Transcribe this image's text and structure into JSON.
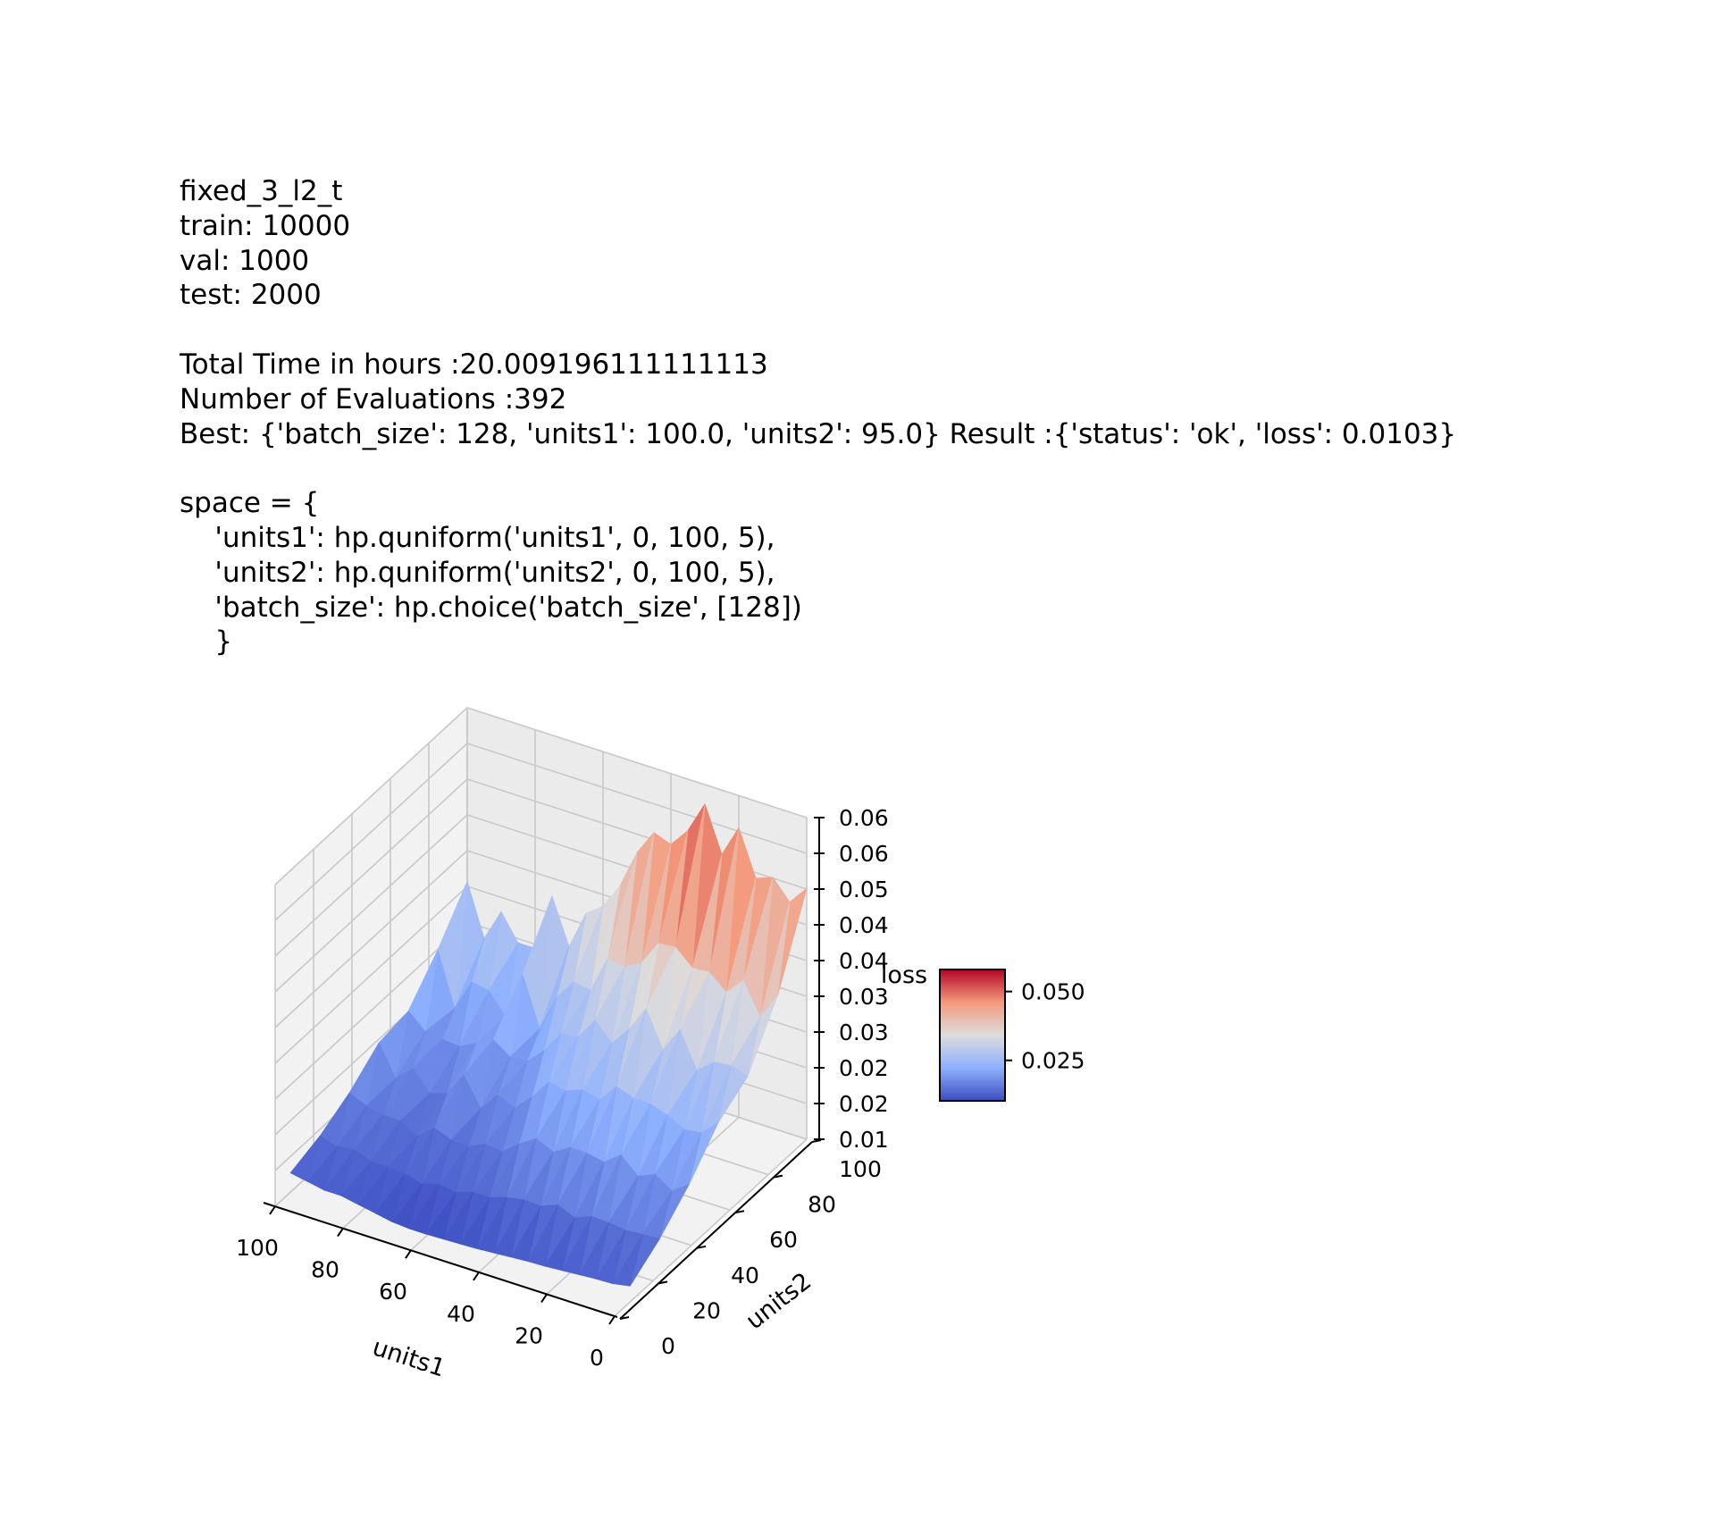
{
  "header": {
    "lines": [
      "fixed_3_l2_t",
      "train: 10000",
      "val: 1000",
      "test: 2000",
      "",
      "Total Time in hours :20.009196111111113",
      "Number of Evaluations :392",
      "Best: {'batch_size': 128, 'units1': 100.0, 'units2': 95.0} Result :{'status': 'ok', 'loss': 0.0103}",
      "",
      "space = {",
      "    'units1': hp.quniform('units1', 0, 100, 5),",
      "    'units2': hp.quniform('units2', 0, 100, 5),",
      "    'batch_size': hp.choice('batch_size', [128])",
      "    }"
    ]
  },
  "chart_data": {
    "type": "surface3d",
    "xlabel": "units1",
    "ylabel": "units2",
    "zlabel": "loss",
    "x_ticks": [
      "100",
      "80",
      "60",
      "40",
      "20",
      "0"
    ],
    "y_ticks": [
      "0",
      "20",
      "40",
      "60",
      "80",
      "100"
    ],
    "z_ticks": [
      "0.01",
      "0.02",
      "0.02",
      "0.03",
      "0.03",
      "0.04",
      "0.04",
      "0.05",
      "0.06",
      "0.06"
    ],
    "xlim": [
      0,
      100
    ],
    "ylim": [
      0,
      100
    ],
    "zlim": [
      0.01,
      0.06
    ],
    "colormap": "coolwarm",
    "colorbar": {
      "ticks": [
        "0.025",
        "0.050"
      ],
      "tick_values": [
        0.025,
        0.05
      ],
      "range": [
        0.0103,
        0.058
      ]
    },
    "grid": true,
    "back_ridge": [
      {
        "units1": 100,
        "loss": 0.033
      },
      {
        "units1": 95,
        "loss": 0.025
      },
      {
        "units1": 90,
        "loss": 0.03
      },
      {
        "units1": 85,
        "loss": 0.026
      },
      {
        "units1": 80,
        "loss": 0.026
      },
      {
        "units1": 75,
        "loss": 0.035
      },
      {
        "units1": 70,
        "loss": 0.028
      },
      {
        "units1": 65,
        "loss": 0.034
      },
      {
        "units1": 60,
        "loss": 0.036
      },
      {
        "units1": 55,
        "loss": 0.04
      },
      {
        "units1": 50,
        "loss": 0.046
      },
      {
        "units1": 45,
        "loss": 0.05
      },
      {
        "units1": 40,
        "loss": 0.049
      },
      {
        "units1": 35,
        "loss": 0.052
      },
      {
        "units1": 30,
        "loss": 0.057
      },
      {
        "units1": 25,
        "loss": 0.05
      },
      {
        "units1": 20,
        "loss": 0.055
      },
      {
        "units1": 15,
        "loss": 0.048
      },
      {
        "units1": 10,
        "loss": 0.049
      },
      {
        "units1": 5,
        "loss": 0.046
      },
      {
        "units1": 0,
        "loss": 0.049
      }
    ],
    "front_ridge": [
      {
        "units1": 100,
        "loss": 0.013
      },
      {
        "units1": 95,
        "loss": 0.0125
      },
      {
        "units1": 90,
        "loss": 0.012
      },
      {
        "units1": 85,
        "loss": 0.012
      },
      {
        "units1": 80,
        "loss": 0.0115
      },
      {
        "units1": 75,
        "loss": 0.011
      },
      {
        "units1": 70,
        "loss": 0.0105
      },
      {
        "units1": 65,
        "loss": 0.0103
      },
      {
        "units1": 60,
        "loss": 0.0103
      },
      {
        "units1": 55,
        "loss": 0.0104
      },
      {
        "units1": 50,
        "loss": 0.0105
      },
      {
        "units1": 45,
        "loss": 0.0106
      },
      {
        "units1": 40,
        "loss": 0.0108
      },
      {
        "units1": 35,
        "loss": 0.011
      },
      {
        "units1": 30,
        "loss": 0.0112
      },
      {
        "units1": 25,
        "loss": 0.0113
      },
      {
        "units1": 20,
        "loss": 0.0115
      },
      {
        "units1": 15,
        "loss": 0.0117
      },
      {
        "units1": 10,
        "loss": 0.0119
      },
      {
        "units1": 5,
        "loss": 0.012
      },
      {
        "units1": 0,
        "loss": 0.0125
      }
    ]
  }
}
